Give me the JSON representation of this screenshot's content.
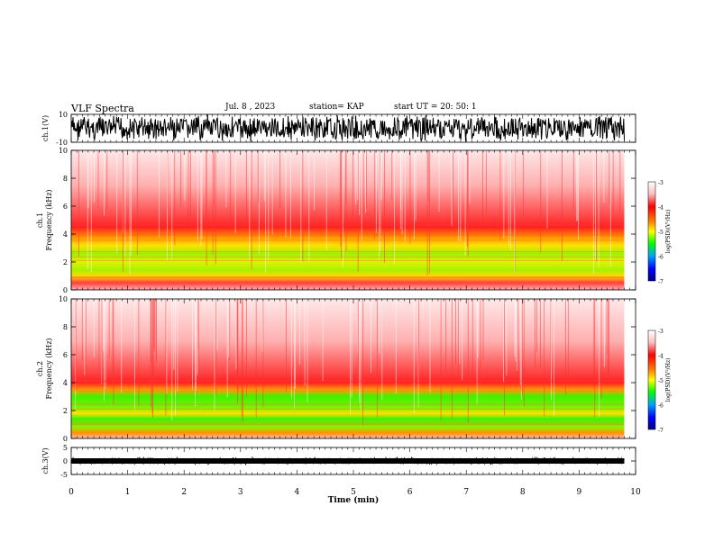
{
  "header": {
    "title": "VLF Spectra",
    "date": "Jul. 8 , 2023",
    "station": "station= KAP",
    "start": "start UT = 20: 50: 1"
  },
  "colors": {
    "scale": [
      "#000080",
      "#0000ff",
      "#00a0ff",
      "#00ff00",
      "#ffff00",
      "#ff8000",
      "#ff0000",
      "#ffc0c0",
      "#ffffff"
    ]
  },
  "chart_data": [
    {
      "type": "line",
      "name": "waveform-ch1",
      "ylabel": "ch.1(V)",
      "ylim": [
        -10,
        10
      ],
      "yticks": [
        "10",
        "-10"
      ],
      "x_range_min": [
        0,
        9.8
      ]
    },
    {
      "type": "heatmap",
      "name": "spectrogram-ch1",
      "ylabel": "ch.1 Frequency (kHz)",
      "ylim": [
        0,
        10
      ],
      "yticks": [
        "0",
        "2",
        "4",
        "6",
        "8",
        "10"
      ],
      "colorbar": {
        "label": "log(PSD)(V²/Hz)",
        "range": [
          -7,
          -3
        ],
        "ticks": [
          "-3",
          "-4",
          "-5",
          "-6",
          "-7"
        ]
      },
      "description_bands_khz": {
        "strong_green": [
          1.0,
          3.5
        ],
        "yellow": [
          0.5,
          4.5
        ],
        "red": [
          4.5,
          6.0
        ]
      }
    },
    {
      "type": "heatmap",
      "name": "spectrogram-ch2",
      "ylabel": "ch.2 Frequency (kHz)",
      "ylim": [
        0,
        10
      ],
      "yticks": [
        "0",
        "2",
        "4",
        "6",
        "8",
        "10"
      ],
      "colorbar": {
        "label": "log(PSD)(V²/Hz)",
        "range": [
          -7,
          -3
        ],
        "ticks": [
          "-3",
          "-4",
          "-5",
          "-6",
          "-7"
        ]
      },
      "description_bands_khz": {
        "strong_green": [
          0.5,
          3.2
        ],
        "yellow": [
          0.3,
          3.8
        ],
        "red": [
          3.8,
          6.0
        ]
      }
    },
    {
      "type": "line",
      "name": "waveform-ch3",
      "ylabel": "ch.3(V)",
      "ylim": [
        -5,
        5
      ],
      "yticks": [
        "5",
        "0",
        "-5"
      ],
      "x_range_min": [
        0,
        9.8
      ]
    }
  ],
  "xaxis": {
    "label": "Time (min)",
    "ticks": [
      "0",
      "1",
      "2",
      "3",
      "4",
      "5",
      "6",
      "7",
      "8",
      "9",
      "10"
    ],
    "range": [
      0,
      10
    ]
  }
}
